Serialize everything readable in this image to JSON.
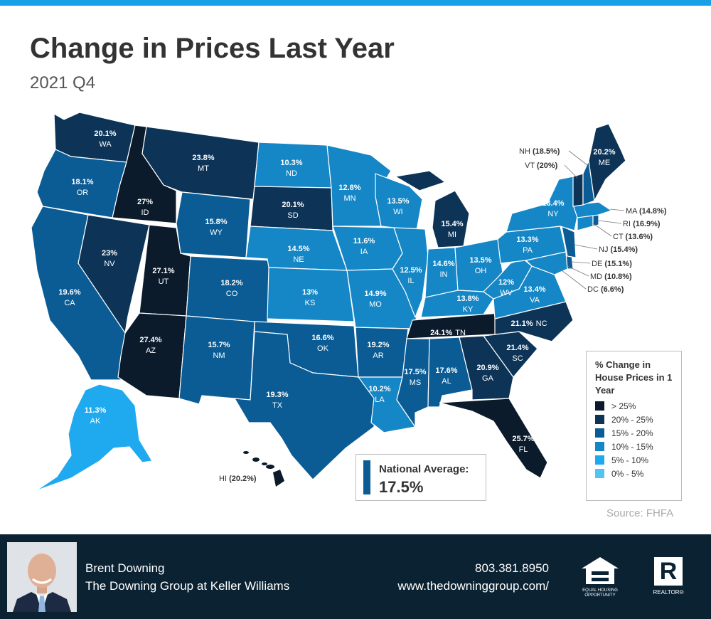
{
  "header": {
    "title": "Change in Prices Last Year",
    "subtitle": "2021 Q4"
  },
  "colors": {
    "top_bar": "#1aa0e6",
    "over_25": "#0b1b2b",
    "r20_25": "#0d3457",
    "r15_20": "#0b5b94",
    "r10_15": "#1587c6",
    "r5_10": "#1faaf0",
    "r0_5": "#52c3f3",
    "footer": "#0b2233"
  },
  "states": {
    "WA": {
      "abbr": "WA",
      "value": "20.1%",
      "range": "20-25"
    },
    "OR": {
      "abbr": "OR",
      "value": "18.1%",
      "range": "15-20"
    },
    "CA": {
      "abbr": "CA",
      "value": "19.6%",
      "range": "15-20"
    },
    "ID": {
      "abbr": "ID",
      "value": "27%",
      "range": ">25"
    },
    "NV": {
      "abbr": "NV",
      "value": "23%",
      "range": "20-25"
    },
    "UT": {
      "abbr": "UT",
      "value": "27.1%",
      "range": ">25"
    },
    "AZ": {
      "abbr": "AZ",
      "value": "27.4%",
      "range": ">25"
    },
    "MT": {
      "abbr": "MT",
      "value": "23.8%",
      "range": "20-25"
    },
    "WY": {
      "abbr": "WY",
      "value": "15.8%",
      "range": "15-20"
    },
    "CO": {
      "abbr": "CO",
      "value": "18.2%",
      "range": "15-20"
    },
    "NM": {
      "abbr": "NM",
      "value": "15.7%",
      "range": "15-20"
    },
    "ND": {
      "abbr": "ND",
      "value": "10.3%",
      "range": "10-15"
    },
    "SD": {
      "abbr": "SD",
      "value": "20.1%",
      "range": "20-25"
    },
    "NE": {
      "abbr": "NE",
      "value": "14.5%",
      "range": "10-15"
    },
    "KS": {
      "abbr": "KS",
      "value": "13%",
      "range": "10-15"
    },
    "OK": {
      "abbr": "OK",
      "value": "16.6%",
      "range": "15-20"
    },
    "TX": {
      "abbr": "TX",
      "value": "19.3%",
      "range": "15-20"
    },
    "MN": {
      "abbr": "MN",
      "value": "12.8%",
      "range": "10-15"
    },
    "IA": {
      "abbr": "IA",
      "value": "11.6%",
      "range": "10-15"
    },
    "MO": {
      "abbr": "MO",
      "value": "14.9%",
      "range": "10-15"
    },
    "AR": {
      "abbr": "AR",
      "value": "19.2%",
      "range": "15-20"
    },
    "LA": {
      "abbr": "LA",
      "value": "10.2%",
      "range": "10-15"
    },
    "WI": {
      "abbr": "WI",
      "value": "13.5%",
      "range": "10-15"
    },
    "IL": {
      "abbr": "IL",
      "value": "12.5%",
      "range": "10-15"
    },
    "MI": {
      "abbr": "MI",
      "value": "15.4%",
      "range": "15-20"
    },
    "IN": {
      "abbr": "IN",
      "value": "14.6%",
      "range": "10-15"
    },
    "OH": {
      "abbr": "OH",
      "value": "13.5%",
      "range": "10-15"
    },
    "KY": {
      "abbr": "KY",
      "value": "13.8%",
      "range": "10-15"
    },
    "TN": {
      "abbr": "TN",
      "value": "24.1%",
      "range": "20-25"
    },
    "MS": {
      "abbr": "MS",
      "value": "17.5%",
      "range": "15-20"
    },
    "AL": {
      "abbr": "AL",
      "value": "17.6%",
      "range": "15-20"
    },
    "GA": {
      "abbr": "GA",
      "value": "20.9%",
      "range": "20-25"
    },
    "FL": {
      "abbr": "FL",
      "value": "25.7%",
      "range": ">25"
    },
    "SC": {
      "abbr": "SC",
      "value": "21.4%",
      "range": "20-25"
    },
    "NC": {
      "abbr": "NC",
      "value": "21.1%",
      "range": "20-25"
    },
    "VA": {
      "abbr": "VA",
      "value": "13.4%",
      "range": "10-15"
    },
    "WV": {
      "abbr": "WV",
      "value": "12%",
      "range": "10-15"
    },
    "PA": {
      "abbr": "PA",
      "value": "13.3%",
      "range": "10-15"
    },
    "NY": {
      "abbr": "NY",
      "value": "13.4%",
      "range": "10-15"
    },
    "ME": {
      "abbr": "ME",
      "value": "20.2%",
      "range": "20-25"
    },
    "AK": {
      "abbr": "AK",
      "value": "11.3%",
      "range": "10-15"
    },
    "HI": {
      "abbr": "HI",
      "value": "(20.2%)",
      "range": "20-25"
    },
    "NH": {
      "abbr": "NH",
      "value": "(18.5%)",
      "range": "15-20"
    },
    "VT": {
      "abbr": "VT",
      "value": "(20%)",
      "range": "20-25"
    },
    "MA": {
      "abbr": "MA",
      "value": "(14.8%)",
      "range": "10-15"
    },
    "RI": {
      "abbr": "RI",
      "value": "(16.9%)",
      "range": "15-20"
    },
    "CT": {
      "abbr": "CT",
      "value": "(13.6%)",
      "range": "10-15"
    },
    "NJ": {
      "abbr": "NJ",
      "value": "(15.4%)",
      "range": "15-20"
    },
    "DE": {
      "abbr": "DE",
      "value": "(15.1%)",
      "range": "15-20"
    },
    "MD": {
      "abbr": "MD",
      "value": "(10.8%)",
      "range": "10-15"
    },
    "DC": {
      "abbr": "DC",
      "value": "(6.6%)",
      "range": "5-10"
    }
  },
  "legend": {
    "title": "% Change in House Prices in 1 Year",
    "items": [
      {
        "label": "> 25%",
        "color": "#0b1b2b"
      },
      {
        "label": "20% - 25%",
        "color": "#0d3457"
      },
      {
        "label": "15% - 20%",
        "color": "#0b5b94"
      },
      {
        "label": "10% - 15%",
        "color": "#1587c6"
      },
      {
        "label": "5% - 10%",
        "color": "#1faaf0"
      },
      {
        "label": "0% - 5%",
        "color": "#52c3f3"
      }
    ]
  },
  "national_average": {
    "label": "National Average:",
    "value": "17.5%"
  },
  "source": "Source: FHFA",
  "footer": {
    "name": "Brent Downing",
    "company": "The Downing Group at Keller Williams",
    "phone": "803.381.8950",
    "website": "www.thedowninggroup.com/",
    "eho_text": "EQUAL HOUSING OPPORTUNITY",
    "realtor_text": "REALTOR®",
    "realtor_letter": "R"
  }
}
